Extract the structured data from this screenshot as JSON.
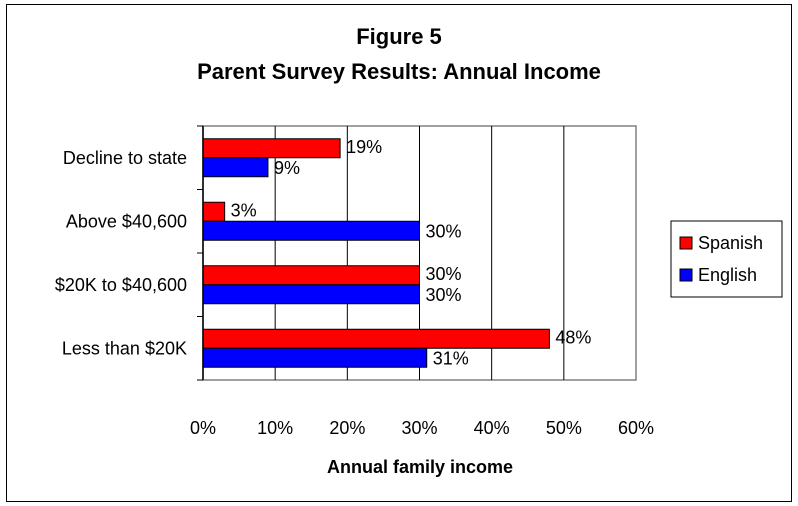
{
  "chart_data": {
    "type": "bar",
    "orientation": "horizontal",
    "title": "Figure 5",
    "subtitle": "Parent Survey Results: Annual Income",
    "xlabel": "Annual family income",
    "ylabel": "",
    "xlim": [
      0,
      60
    ],
    "x_ticks": [
      "0%",
      "10%",
      "20%",
      "30%",
      "40%",
      "50%",
      "60%"
    ],
    "categories": [
      "Decline to state",
      "Above $40,600",
      "$20K to $40,600",
      "Less than $20K"
    ],
    "series": [
      {
        "name": "Spanish",
        "color": "#ff0000",
        "values": [
          19,
          3,
          30,
          48
        ],
        "labels": [
          "19%",
          "3%",
          "30%",
          "48%"
        ]
      },
      {
        "name": "English",
        "color": "#0000ff",
        "values": [
          9,
          30,
          30,
          31
        ],
        "labels": [
          "9%",
          "30%",
          "30%",
          "31%"
        ]
      }
    ],
    "grid": true,
    "legend_position": "right"
  }
}
